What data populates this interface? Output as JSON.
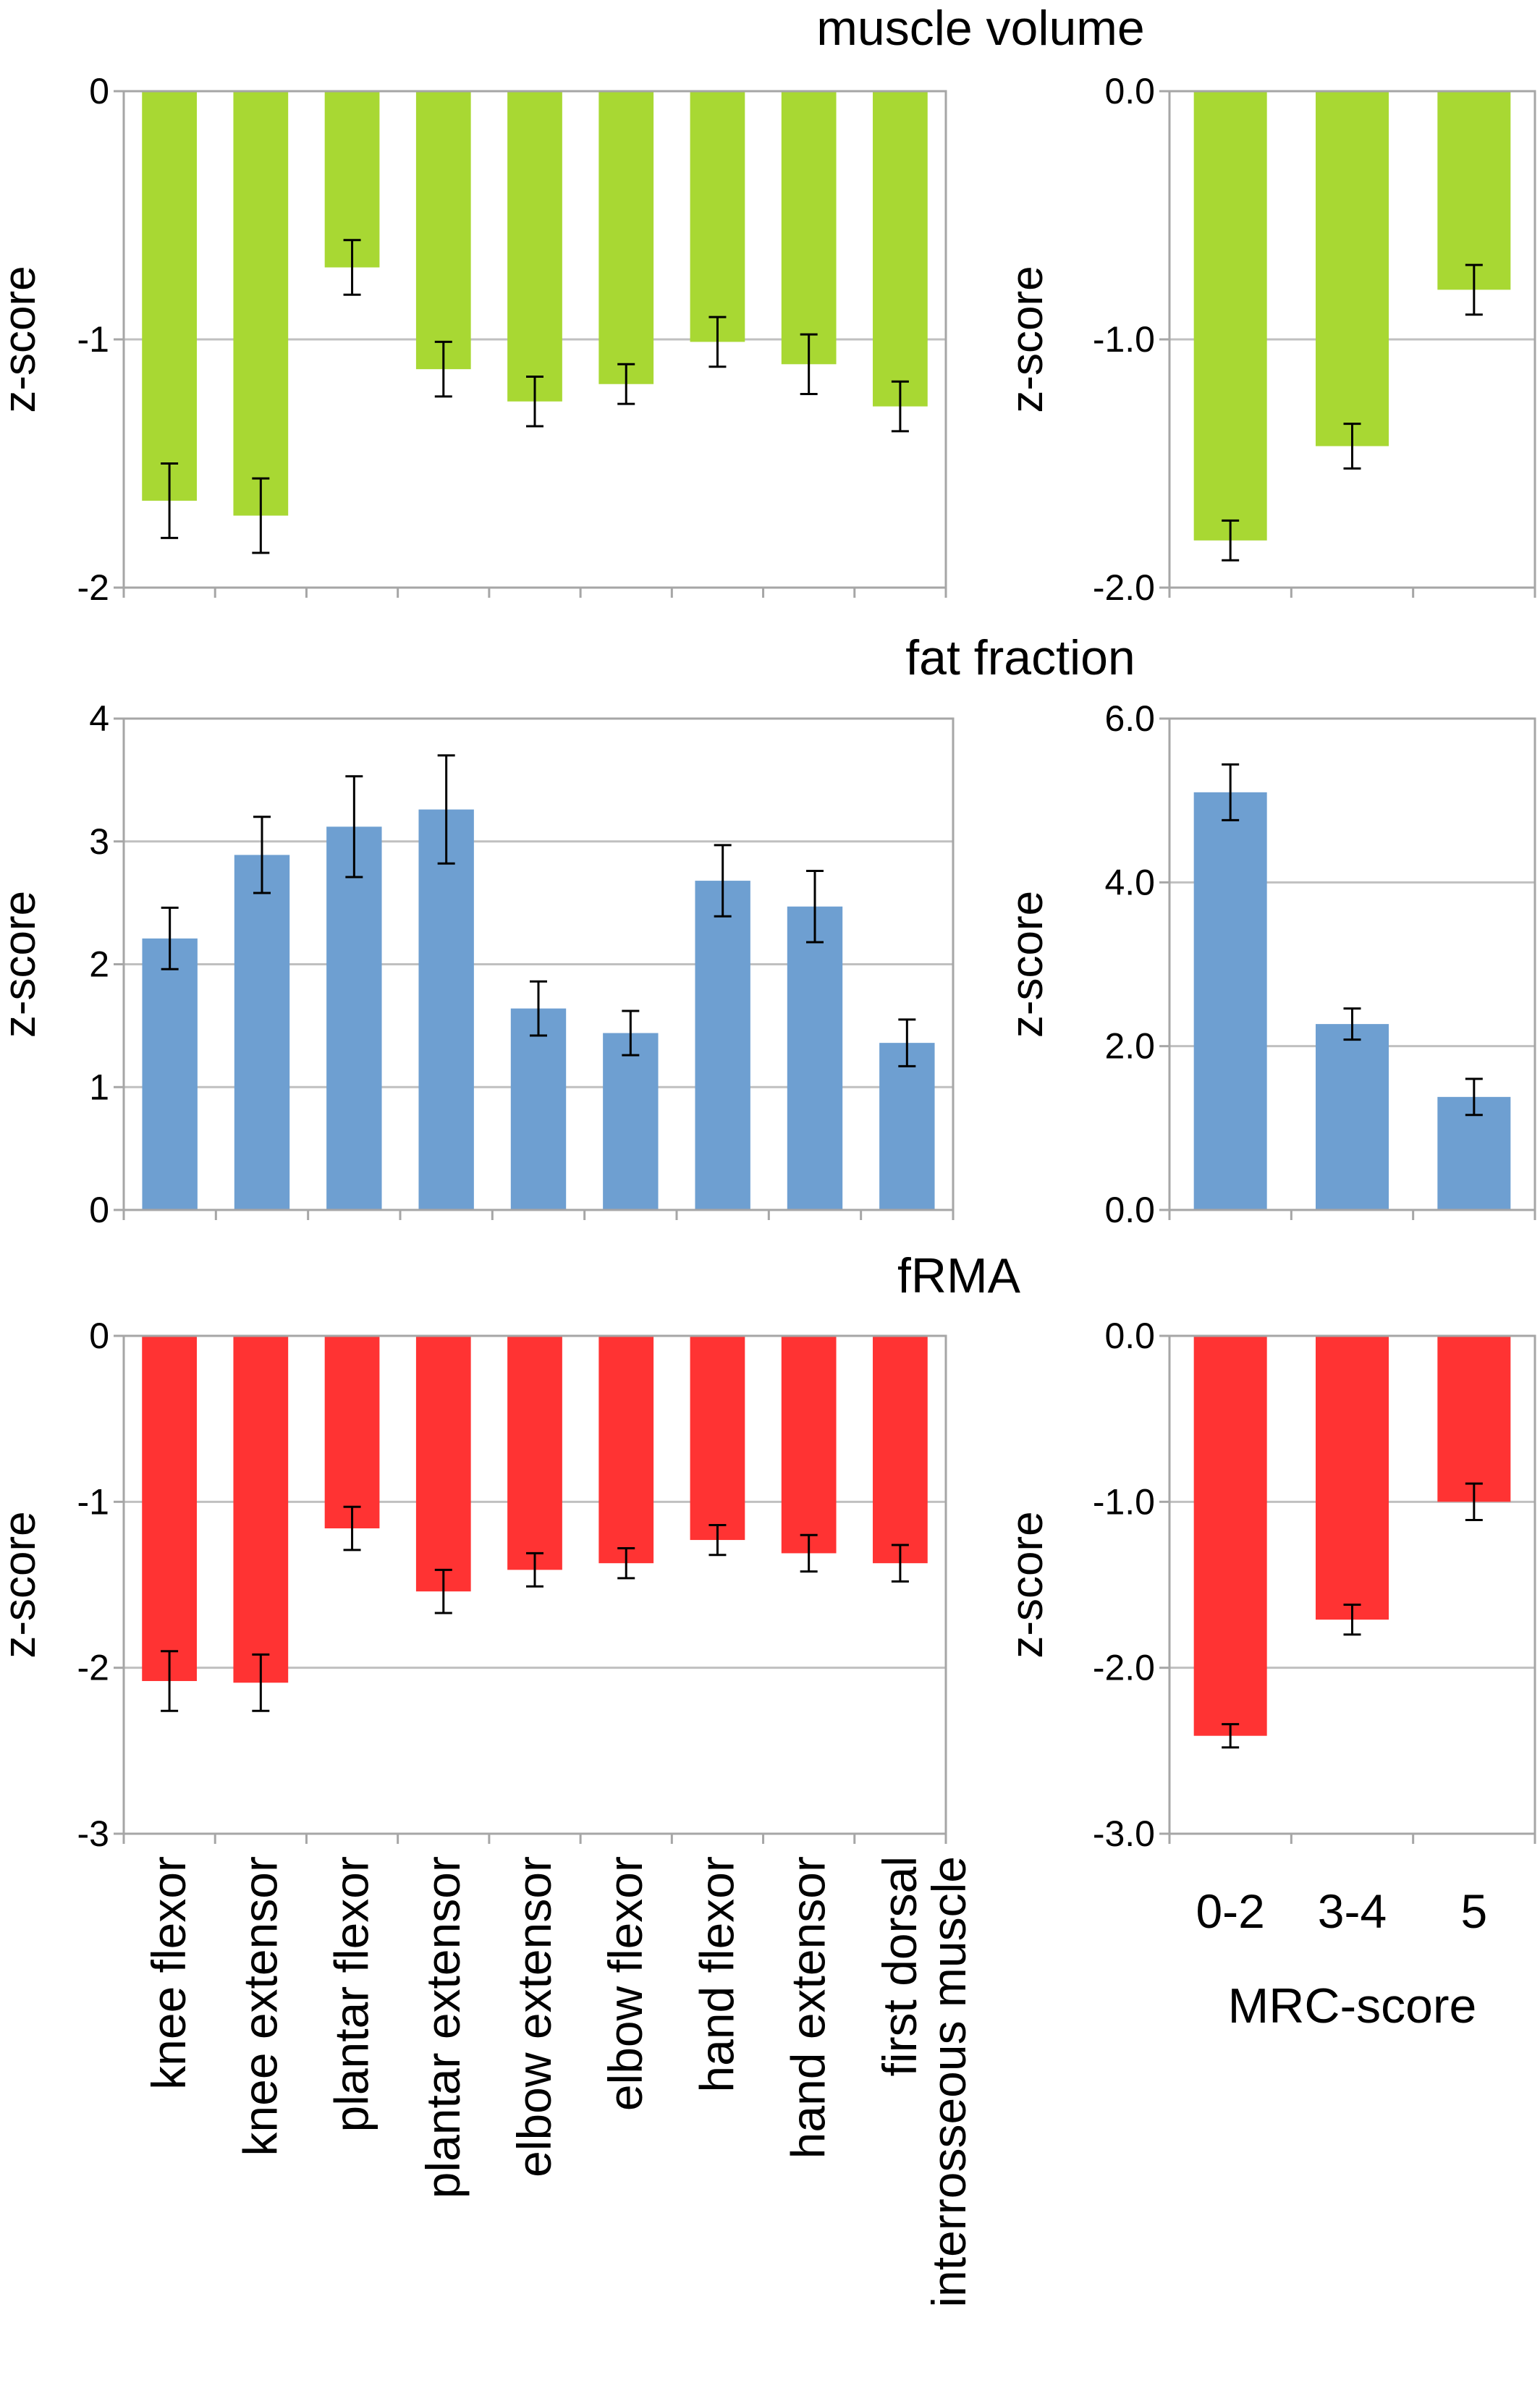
{
  "figure": {
    "muscle_categories": [
      "knee flexor",
      "knee extensor",
      "plantar flexor",
      "plantar extensor",
      "elbow extensor",
      "elbow flexor",
      "hand flexor",
      "hand extensor",
      "first dorsal\ninterrosseous muscle"
    ],
    "mrc_categories": [
      "0-2",
      "3-4",
      "5"
    ],
    "mrc_axis_label": "MRC-score",
    "colors": {
      "muscle_volume": "#a8d833",
      "fat_fraction": "#6e9fd1",
      "frma": "#ff3333",
      "grid": "#c0c0c0",
      "axis": "#a6a6a6"
    }
  },
  "chart_data": [
    {
      "type": "bar",
      "panel": "muscle volume / muscle",
      "title": "muscle volume",
      "ylabel": "z-score",
      "categories": [
        "knee flexor",
        "knee extensor",
        "plantar flexor",
        "plantar extensor",
        "elbow extensor",
        "elbow flexor",
        "hand flexor",
        "hand extensor",
        "first dorsal interrosseous muscle"
      ],
      "values": [
        -1.65,
        -1.71,
        -0.71,
        -1.12,
        -1.25,
        -1.18,
        -1.01,
        -1.1,
        -1.27
      ],
      "error": [
        0.15,
        0.15,
        0.11,
        0.11,
        0.1,
        0.08,
        0.1,
        0.12,
        0.1
      ],
      "ylim": [
        -2,
        0
      ],
      "yticks": [
        0,
        -1,
        -2
      ],
      "ytick_labels": [
        "0",
        "-1",
        "-2"
      ],
      "color": "#a8d833"
    },
    {
      "type": "bar",
      "panel": "muscle volume / MRC",
      "ylabel": "z-score",
      "xlabel": "MRC-score",
      "categories": [
        "0-2",
        "3-4",
        "5"
      ],
      "values": [
        -1.81,
        -1.43,
        -0.8
      ],
      "error": [
        0.08,
        0.09,
        0.1
      ],
      "ylim": [
        -2,
        0
      ],
      "yticks": [
        0,
        -1,
        -2
      ],
      "ytick_labels": [
        "0.0",
        "-1.0",
        "-2.0"
      ],
      "color": "#a8d833"
    },
    {
      "type": "bar",
      "panel": "fat fraction / muscle",
      "title": "fat fraction",
      "ylabel": "z-score",
      "categories": [
        "knee flexor",
        "knee extensor",
        "plantar flexor",
        "plantar extensor",
        "elbow extensor",
        "elbow flexor",
        "hand flexor",
        "hand extensor",
        "first dorsal interrosseous muscle"
      ],
      "values": [
        2.21,
        2.89,
        3.12,
        3.26,
        1.64,
        1.44,
        2.68,
        2.47,
        1.36
      ],
      "error": [
        0.25,
        0.31,
        0.41,
        0.44,
        0.22,
        0.18,
        0.29,
        0.29,
        0.19
      ],
      "ylim": [
        0,
        4
      ],
      "yticks": [
        0,
        1,
        2,
        3,
        4
      ],
      "ytick_labels": [
        "0",
        "1",
        "2",
        "3",
        "4"
      ],
      "color": "#6e9fd1"
    },
    {
      "type": "bar",
      "panel": "fat fraction / MRC",
      "ylabel": "z-score",
      "xlabel": "MRC-score",
      "categories": [
        "0-2",
        "3-4",
        "5"
      ],
      "values": [
        5.1,
        2.27,
        1.38
      ],
      "error": [
        0.34,
        0.19,
        0.22
      ],
      "ylim": [
        0,
        6
      ],
      "yticks": [
        0,
        2,
        4,
        6
      ],
      "ytick_labels": [
        "0.0",
        "2.0",
        "4.0",
        "6.0"
      ],
      "color": "#6e9fd1"
    },
    {
      "type": "bar",
      "panel": "fRMA / muscle",
      "title": "fRMA",
      "ylabel": "z-score",
      "categories": [
        "knee flexor",
        "knee extensor",
        "plantar flexor",
        "plantar extensor",
        "elbow extensor",
        "elbow flexor",
        "hand flexor",
        "hand extensor",
        "first dorsal interrosseous muscle"
      ],
      "values": [
        -2.08,
        -2.09,
        -1.16,
        -1.54,
        -1.41,
        -1.37,
        -1.23,
        -1.31,
        -1.37
      ],
      "error": [
        0.18,
        0.17,
        0.13,
        0.13,
        0.1,
        0.09,
        0.09,
        0.11,
        0.11
      ],
      "ylim": [
        -3,
        0
      ],
      "yticks": [
        0,
        -1,
        -2,
        -3
      ],
      "ytick_labels": [
        "0",
        "-1",
        "-2",
        "-3"
      ],
      "color": "#ff3333"
    },
    {
      "type": "bar",
      "panel": "fRMA / MRC",
      "ylabel": "z-score",
      "xlabel": "MRC-score",
      "categories": [
        "0-2",
        "3-4",
        "5"
      ],
      "values": [
        -2.41,
        -1.71,
        -1.0
      ],
      "error": [
        0.07,
        0.09,
        0.11
      ],
      "ylim": [
        -3,
        0
      ],
      "yticks": [
        0,
        -1,
        -2,
        -3
      ],
      "ytick_labels": [
        "0.0",
        "-1.0",
        "-2.0",
        "-3.0"
      ],
      "color": "#ff3333"
    }
  ]
}
